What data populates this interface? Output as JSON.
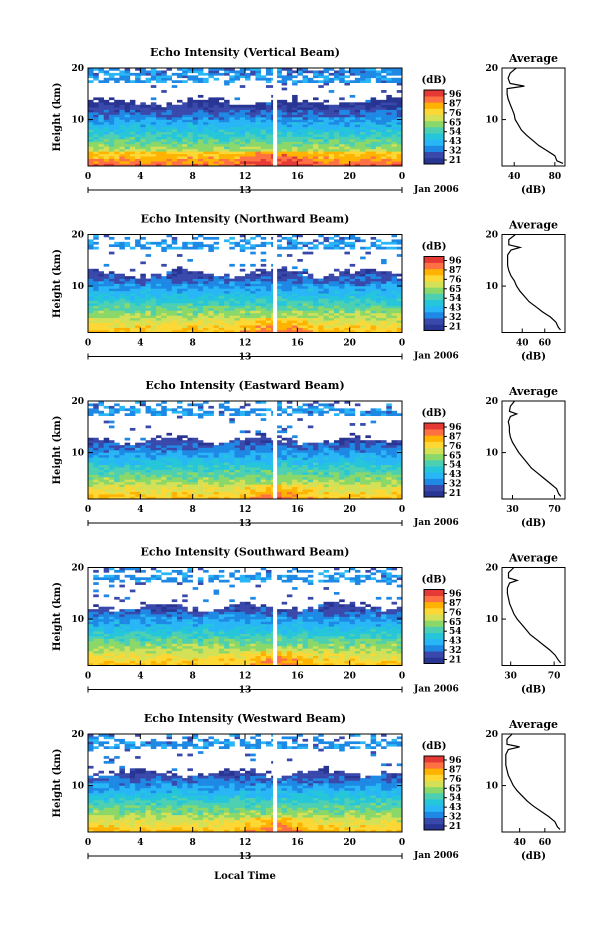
{
  "figure": {
    "xlabel_bottom": "Local Time",
    "date_label": "Jan 2006",
    "colorbar_unit": "(dB)",
    "colorbar_ticks": [
      "96",
      "87",
      "76",
      "65",
      "54",
      "43",
      "32",
      "21"
    ],
    "colorscale": [
      "#283593",
      "#3949ab",
      "#1e88e5",
      "#29b6f6",
      "#26c6da",
      "#4dd0b1",
      "#8bd86a",
      "#d4e157",
      "#fdd835",
      "#ffb300",
      "#ff7043",
      "#e53935"
    ]
  },
  "chart_data": [
    {
      "type": "heatmap",
      "title": "Echo Intensity (Vertical Beam)",
      "ylabel": "Height (km)",
      "xlabel": "Local Time",
      "x_ticks": [
        "0",
        "4",
        "8",
        "12",
        "16",
        "20",
        "0"
      ],
      "day_label": "13",
      "y_ticks": [
        "20",
        "10"
      ],
      "xlim": [
        0,
        24
      ],
      "ylim": [
        1,
        20
      ],
      "colorbar": {
        "unit": "(dB)",
        "ticks": [
          "96",
          "87",
          "76",
          "65",
          "54",
          "43",
          "32",
          "21"
        ]
      },
      "profile": {
        "title": "Average",
        "xlabel": "(dB)",
        "x_ticks": [
          "40",
          "80"
        ],
        "y_ticks": [
          "20",
          "10"
        ],
        "xlim": [
          28,
          90
        ],
        "heights": [
          1.5,
          2,
          3,
          4,
          5,
          6,
          7,
          8,
          9,
          10,
          11,
          12,
          13,
          14,
          15,
          16,
          16.5,
          17,
          18,
          19,
          20
        ],
        "values": [
          88,
          82,
          80,
          72,
          64,
          58,
          52,
          47,
          44,
          41,
          40,
          38,
          36,
          34,
          33,
          33,
          50,
          36,
          34,
          36,
          42
        ]
      }
    },
    {
      "type": "heatmap",
      "title": "Echo Intensity (Northward Beam)",
      "ylabel": "Height (km)",
      "xlabel": "Local Time",
      "x_ticks": [
        "0",
        "4",
        "8",
        "12",
        "16",
        "20",
        "0"
      ],
      "day_label": "13",
      "y_ticks": [
        "20",
        "10"
      ],
      "xlim": [
        0,
        24
      ],
      "ylim": [
        1,
        20
      ],
      "colorbar": {
        "unit": "(dB)",
        "ticks": [
          "96",
          "87",
          "76",
          "65",
          "54",
          "43",
          "32",
          "21"
        ]
      },
      "profile": {
        "title": "Average",
        "xlabel": "(dB)",
        "x_ticks": [
          "40",
          "60"
        ],
        "y_ticks": [
          "20",
          "10"
        ],
        "xlim": [
          22,
          78
        ],
        "heights": [
          1.5,
          2,
          3,
          4,
          5,
          6,
          7,
          8,
          9,
          10,
          11,
          12,
          13,
          14,
          15,
          16,
          17,
          17.5,
          18,
          19,
          20
        ],
        "values": [
          74,
          72,
          70,
          65,
          58,
          52,
          46,
          42,
          38,
          35,
          33,
          30,
          28,
          27,
          27,
          27,
          30,
          38,
          28,
          28,
          34
        ]
      }
    },
    {
      "type": "heatmap",
      "title": "Echo Intensity (Eastward Beam)",
      "ylabel": "Height (km)",
      "xlabel": "Local Time",
      "x_ticks": [
        "0",
        "4",
        "8",
        "12",
        "16",
        "20",
        "0"
      ],
      "day_label": "13",
      "y_ticks": [
        "20",
        "10"
      ],
      "xlim": [
        0,
        24
      ],
      "ylim": [
        1,
        20
      ],
      "colorbar": {
        "unit": "(dB)",
        "ticks": [
          "96",
          "87",
          "76",
          "65",
          "54",
          "43",
          "32",
          "21"
        ]
      },
      "profile": {
        "title": "Average",
        "xlabel": "(dB)",
        "x_ticks": [
          "30",
          "70"
        ],
        "y_ticks": [
          "20",
          "10"
        ],
        "xlim": [
          20,
          80
        ],
        "heights": [
          1.5,
          2,
          3,
          4,
          5,
          6,
          7,
          8,
          9,
          10,
          11,
          12,
          13,
          14,
          15,
          16,
          17,
          17.5,
          18,
          19,
          20
        ],
        "values": [
          76,
          74,
          72,
          66,
          60,
          54,
          48,
          44,
          40,
          36,
          33,
          30,
          28,
          27,
          27,
          26,
          28,
          34,
          27,
          28,
          32
        ]
      }
    },
    {
      "type": "heatmap",
      "title": "Echo Intensity (Southward Beam)",
      "ylabel": "Height (km)",
      "xlabel": "Local Time",
      "x_ticks": [
        "0",
        "4",
        "8",
        "12",
        "16",
        "20",
        "0"
      ],
      "day_label": "13",
      "y_ticks": [
        "20",
        "10"
      ],
      "xlim": [
        0,
        24
      ],
      "ylim": [
        1,
        20
      ],
      "colorbar": {
        "unit": "(dB)",
        "ticks": [
          "96",
          "87",
          "76",
          "65",
          "54",
          "43",
          "32",
          "21"
        ]
      },
      "profile": {
        "title": "Average",
        "xlabel": "(dB)",
        "x_ticks": [
          "30",
          "70"
        ],
        "y_ticks": [
          "20",
          "10"
        ],
        "xlim": [
          22,
          80
        ],
        "heights": [
          1.5,
          2,
          3,
          4,
          5,
          6,
          7,
          8,
          9,
          10,
          11,
          12,
          13,
          14,
          15,
          16,
          17,
          17.5,
          18,
          19,
          20
        ],
        "values": [
          76,
          74,
          71,
          66,
          60,
          54,
          48,
          44,
          40,
          36,
          33,
          31,
          29,
          28,
          27,
          27,
          29,
          36,
          28,
          28,
          33
        ]
      }
    },
    {
      "type": "heatmap",
      "title": "Echo Intensity (Westward Beam)",
      "ylabel": "Height (km)",
      "xlabel": "Local Time",
      "x_ticks": [
        "0",
        "4",
        "8",
        "12",
        "16",
        "20",
        "0"
      ],
      "day_label": "13",
      "y_ticks": [
        "20",
        "10"
      ],
      "xlim": [
        0,
        24
      ],
      "ylim": [
        1,
        20
      ],
      "colorbar": {
        "unit": "(dB)",
        "ticks": [
          "96",
          "87",
          "76",
          "65",
          "54",
          "43",
          "32",
          "21"
        ]
      },
      "profile": {
        "title": "Average",
        "xlabel": "(dB)",
        "x_ticks": [
          "40",
          "60"
        ],
        "y_ticks": [
          "20",
          "10"
        ],
        "xlim": [
          26,
          76
        ],
        "heights": [
          1.5,
          2,
          3,
          4,
          5,
          6,
          7,
          8,
          9,
          10,
          11,
          12,
          13,
          14,
          15,
          16,
          17,
          17.5,
          18,
          19,
          20
        ],
        "values": [
          72,
          70,
          68,
          63,
          57,
          51,
          46,
          42,
          38,
          35,
          33,
          31,
          30,
          29,
          29,
          29,
          31,
          40,
          30,
          30,
          34
        ]
      }
    }
  ]
}
